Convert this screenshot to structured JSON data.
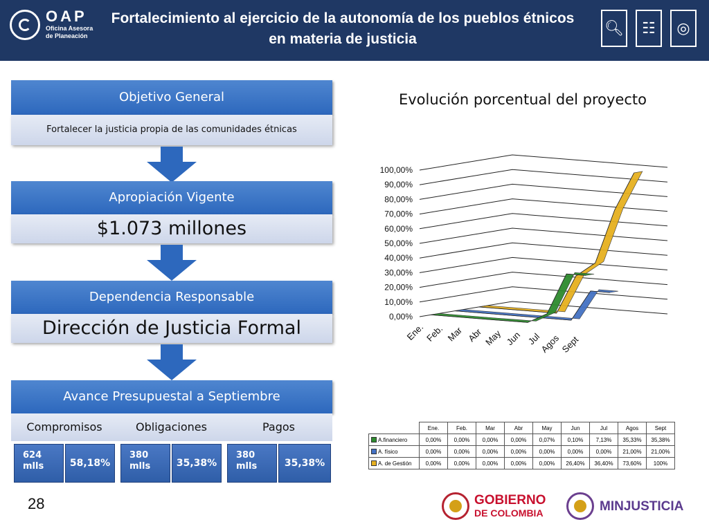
{
  "header": {
    "logo_oap": "OAP",
    "logo_sub": "Oficina Asesora de Planeación",
    "title": "Fortalecimiento al ejercicio de la autonomía de los pueblos étnicos en materia de justicia",
    "icons": [
      "magnifier-icon",
      "report-document-icon",
      "target-icon"
    ]
  },
  "objetivo": {
    "heading": "Objetivo General",
    "text": "Fortalecer la justicia propia de las comunidades étnicas"
  },
  "apropiacion": {
    "heading": "Apropiación Vigente",
    "value": "$1.073 millones"
  },
  "dependencia": {
    "heading": "Dependencia Responsable",
    "value": "Dirección de Justicia Formal"
  },
  "avance": {
    "heading": "Avance Presupuestal a Septiembre",
    "columns": [
      "Compromisos",
      "Obligaciones",
      "Pagos"
    ],
    "cells": [
      {
        "amount": "624 mlls",
        "percent": "58,18%"
      },
      {
        "amount": "380 mlls",
        "percent": "35,38%"
      },
      {
        "amount": "380 mlls",
        "percent": "35,38%"
      }
    ]
  },
  "chart_data": {
    "type": "line",
    "title": "Evolución porcentual del proyecto",
    "categories": [
      "Ene.",
      "Feb.",
      "Mar",
      "Abr",
      "May",
      "Jun",
      "Jul",
      "Agos",
      "Sept"
    ],
    "y_ticks": [
      "100,00%",
      "90,00%",
      "80,00%",
      "70,00%",
      "60,00%",
      "50,00%",
      "40,00%",
      "30,00%",
      "20,00%",
      "10,00%",
      "0,00%"
    ],
    "ylim": [
      0,
      100
    ],
    "grid": true,
    "series": [
      {
        "name": "A.financiero",
        "color": "#2e8b2e",
        "values": [
          0,
          0,
          0,
          0,
          0.07,
          0.1,
          7.13,
          35.33,
          35.38
        ]
      },
      {
        "name": "A. físico",
        "color": "#4472c4",
        "values": [
          0,
          0,
          0,
          0,
          0,
          0,
          0,
          21.0,
          21.0
        ]
      },
      {
        "name": "A. de Gestión",
        "color": "#e6b020",
        "values": [
          0,
          0,
          0,
          0,
          0,
          26.4,
          36.4,
          73.6,
          100
        ]
      }
    ],
    "table": {
      "headers": [
        "Ene.",
        "Feb.",
        "Mar",
        "Abr",
        "May",
        "Jun",
        "Jul",
        "Agos",
        "Sept"
      ],
      "rows": [
        {
          "label": "A.financiero",
          "color": "#2e8b2e",
          "cells": [
            "0,00%",
            "0,00%",
            "0,00%",
            "0,00%",
            "0,07%",
            "0,10%",
            "7,13%",
            "35,33%",
            "35,38%"
          ]
        },
        {
          "label": "A. físico",
          "color": "#4472c4",
          "cells": [
            "0,00%",
            "0,00%",
            "0,00%",
            "0,00%",
            "0,00%",
            "0,00%",
            "0,00%",
            "21,00%",
            "21,00%"
          ]
        },
        {
          "label": "A. de Gestión",
          "color": "#e6b020",
          "cells": [
            "0,00%",
            "0,00%",
            "0,00%",
            "0,00%",
            "0,00%",
            "26,40%",
            "36,40%",
            "73,60%",
            "100%"
          ]
        }
      ]
    }
  },
  "footer": {
    "page_number": "28",
    "gobierno_line1": "GOBIERNO",
    "gobierno_line2": "DE COLOMBIA",
    "minjusticia": "MINJUSTICIA"
  }
}
